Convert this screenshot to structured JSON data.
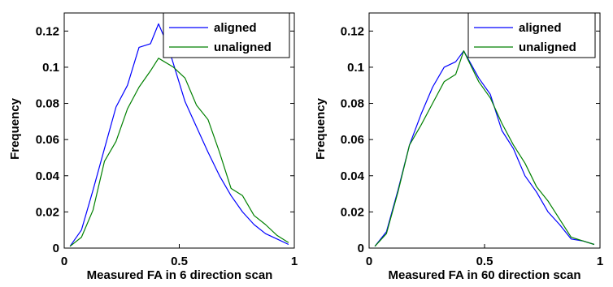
{
  "chart_data": [
    {
      "type": "line",
      "title": "",
      "xlabel": "Measured FA in 6 direction scan",
      "ylabel": "Frequency",
      "xlim": [
        0,
        1
      ],
      "ylim": [
        0,
        0.13
      ],
      "xticks": [
        "0",
        "0.5",
        "1"
      ],
      "yticks": [
        "0",
        "0.02",
        "0.04",
        "0.06",
        "0.08",
        "0.1",
        "0.12"
      ],
      "grid": false,
      "legend_position": "top-right",
      "series": [
        {
          "name": "aligned",
          "color": "#0000ff",
          "x": [
            0.025,
            0.075,
            0.125,
            0.175,
            0.225,
            0.275,
            0.325,
            0.375,
            0.41,
            0.45,
            0.525,
            0.575,
            0.625,
            0.675,
            0.725,
            0.775,
            0.825,
            0.875,
            0.925,
            0.975
          ],
          "y": [
            0.001,
            0.01,
            0.032,
            0.055,
            0.078,
            0.09,
            0.111,
            0.113,
            0.124,
            0.112,
            0.081,
            0.067,
            0.053,
            0.04,
            0.029,
            0.02,
            0.013,
            0.008,
            0.005,
            0.002
          ]
        },
        {
          "name": "unaligned",
          "color": "#008000",
          "x": [
            0.025,
            0.075,
            0.125,
            0.175,
            0.225,
            0.275,
            0.325,
            0.375,
            0.41,
            0.475,
            0.525,
            0.575,
            0.625,
            0.675,
            0.725,
            0.775,
            0.825,
            0.875,
            0.925,
            0.975
          ],
          "y": [
            0.001,
            0.006,
            0.021,
            0.048,
            0.059,
            0.077,
            0.089,
            0.098,
            0.105,
            0.1,
            0.094,
            0.079,
            0.071,
            0.053,
            0.033,
            0.029,
            0.018,
            0.013,
            0.007,
            0.003
          ]
        }
      ]
    },
    {
      "type": "line",
      "title": "",
      "xlabel": "Measured FA  in 60 direction scan",
      "ylabel": "Frequency",
      "xlim": [
        0,
        1
      ],
      "ylim": [
        0,
        0.13
      ],
      "xticks": [
        "0",
        "0.5",
        "1"
      ],
      "yticks": [
        "0",
        "0.02",
        "0.04",
        "0.06",
        "0.08",
        "0.1",
        "0.12"
      ],
      "grid": false,
      "legend_position": "top-right",
      "series": [
        {
          "name": "aligned",
          "color": "#0000ff",
          "x": [
            0.025,
            0.075,
            0.125,
            0.175,
            0.225,
            0.275,
            0.325,
            0.375,
            0.41,
            0.475,
            0.525,
            0.575,
            0.625,
            0.675,
            0.725,
            0.775,
            0.825,
            0.875,
            0.925,
            0.975
          ],
          "y": [
            0.001,
            0.009,
            0.032,
            0.057,
            0.074,
            0.089,
            0.1,
            0.103,
            0.109,
            0.094,
            0.085,
            0.065,
            0.055,
            0.04,
            0.031,
            0.02,
            0.013,
            0.005,
            0.004,
            0.002
          ]
        },
        {
          "name": "unaligned",
          "color": "#008000",
          "x": [
            0.025,
            0.075,
            0.125,
            0.175,
            0.225,
            0.275,
            0.325,
            0.375,
            0.41,
            0.475,
            0.525,
            0.575,
            0.625,
            0.675,
            0.725,
            0.775,
            0.825,
            0.875,
            0.925,
            0.975
          ],
          "y": [
            0.001,
            0.008,
            0.031,
            0.057,
            0.068,
            0.08,
            0.092,
            0.096,
            0.109,
            0.092,
            0.083,
            0.069,
            0.057,
            0.047,
            0.034,
            0.026,
            0.016,
            0.006,
            0.004,
            0.002
          ]
        }
      ]
    }
  ]
}
